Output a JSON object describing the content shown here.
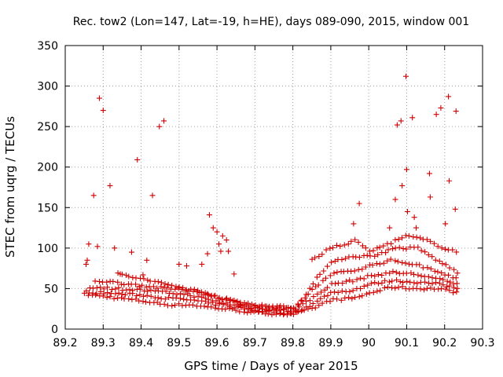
{
  "chart_data": {
    "type": "scatter",
    "title": "Rec. tow2 (Lon=147, Lat=-19, h=HE), days 089-090, 2015, window 001",
    "xlabel": "GPS time / Days of year 2015",
    "ylabel": "STEC from uqrg / TECUs",
    "xlim": [
      89.2,
      90.3
    ],
    "ylim": [
      0,
      350
    ],
    "x_ticks": [
      89.2,
      89.3,
      89.4,
      89.5,
      89.6,
      89.7,
      89.8,
      89.9,
      90.0,
      90.1,
      90.2,
      90.3
    ],
    "x_tick_labels": [
      "89.2",
      "89.3",
      "89.4",
      "89.5",
      "89.6",
      "89.7",
      "89.8",
      "89.9",
      "90",
      "90.1",
      "90.2",
      "90.3"
    ],
    "y_ticks": [
      0,
      50,
      100,
      150,
      200,
      250,
      300,
      350
    ],
    "y_tick_labels": [
      "0",
      "50",
      "100",
      "150",
      "200",
      "250",
      "300",
      "350"
    ],
    "grid": true,
    "marker": "+",
    "marker_color": "#d00000",
    "outliers": [
      [
        89.255,
        80
      ],
      [
        89.258,
        85
      ],
      [
        89.262,
        105
      ],
      [
        89.275,
        165
      ],
      [
        89.285,
        102
      ],
      [
        89.29,
        285
      ],
      [
        89.3,
        270
      ],
      [
        89.318,
        177
      ],
      [
        89.33,
        100
      ],
      [
        89.345,
        68
      ],
      [
        89.375,
        95
      ],
      [
        89.39,
        209
      ],
      [
        89.405,
        67
      ],
      [
        89.415,
        85
      ],
      [
        89.43,
        165
      ],
      [
        89.448,
        250
      ],
      [
        89.46,
        257
      ],
      [
        89.5,
        80
      ],
      [
        89.52,
        78
      ],
      [
        89.56,
        80
      ],
      [
        89.575,
        93
      ],
      [
        89.58,
        141
      ],
      [
        89.59,
        125
      ],
      [
        89.6,
        120
      ],
      [
        89.605,
        105
      ],
      [
        89.61,
        96
      ],
      [
        89.615,
        115
      ],
      [
        89.625,
        110
      ],
      [
        89.63,
        96
      ],
      [
        89.645,
        68
      ],
      [
        89.96,
        130
      ],
      [
        89.975,
        155
      ],
      [
        90.055,
        125
      ],
      [
        90.07,
        160
      ],
      [
        90.075,
        252
      ],
      [
        90.085,
        257
      ],
      [
        90.088,
        177
      ],
      [
        90.098,
        312
      ],
      [
        90.1,
        197
      ],
      [
        90.102,
        145
      ],
      [
        90.115,
        261
      ],
      [
        90.12,
        138
      ],
      [
        90.125,
        125
      ],
      [
        90.16,
        192
      ],
      [
        90.162,
        163
      ],
      [
        90.178,
        265
      ],
      [
        90.19,
        273
      ],
      [
        90.202,
        130
      ],
      [
        90.21,
        287
      ],
      [
        90.212,
        183
      ],
      [
        90.228,
        148
      ],
      [
        90.23,
        269
      ]
    ],
    "arc_series": [
      {
        "name": "arc-a",
        "x": [
          89.252,
          89.4,
          89.47,
          89.53,
          89.58,
          89.64,
          89.7,
          89.76,
          89.8,
          89.85,
          89.9,
          89.96,
          90.0,
          90.06,
          90.12,
          90.18,
          90.238
        ],
        "values": [
          43,
          35,
          30,
          30,
          27,
          24,
          20,
          19,
          18,
          25,
          36,
          38,
          44,
          52,
          50,
          50,
          45
        ]
      },
      {
        "name": "arc-b",
        "x": [
          89.255,
          89.4,
          89.47,
          89.53,
          89.58,
          89.64,
          89.7,
          89.76,
          89.8,
          89.85,
          89.9,
          89.96,
          90.0,
          90.06,
          90.12,
          90.18,
          90.238
        ],
        "values": [
          46,
          42,
          38,
          36,
          32,
          28,
          23,
          21,
          20,
          30,
          45,
          48,
          55,
          60,
          58,
          56,
          50
        ]
      },
      {
        "name": "arc-c",
        "x": [
          89.265,
          89.4,
          89.47,
          89.53,
          89.58,
          89.64,
          89.7,
          89.76,
          89.8,
          89.85,
          89.9,
          89.96,
          90.0,
          90.06,
          90.12,
          90.18,
          90.235
        ],
        "values": [
          52,
          48,
          45,
          42,
          36,
          30,
          26,
          24,
          22,
          38,
          55,
          60,
          65,
          70,
          68,
          62,
          55
        ]
      },
      {
        "name": "arc-d",
        "x": [
          89.28,
          89.38,
          89.47,
          89.53,
          89.58,
          89.64,
          89.7,
          89.76,
          89.8,
          89.85,
          89.9,
          89.96,
          90.0,
          90.06,
          90.12,
          90.18,
          90.235
        ],
        "values": [
          60,
          55,
          50,
          48,
          42,
          34,
          28,
          26,
          24,
          48,
          68,
          72,
          78,
          85,
          80,
          72,
          62
        ]
      },
      {
        "name": "arc-e",
        "x": [
          89.34,
          89.42,
          89.5,
          89.57,
          89.63,
          89.7,
          89.76,
          89.81,
          89.86,
          89.91,
          89.96,
          90.01,
          90.07,
          90.13,
          90.18,
          90.235
        ],
        "values": [
          68,
          60,
          52,
          45,
          36,
          30,
          28,
          26,
          62,
          85,
          90,
          90,
          100,
          100,
          85,
          70
        ]
      },
      {
        "name": "arc-f",
        "x": [
          89.85,
          89.9,
          89.94,
          89.97,
          90.0,
          90.05,
          90.1,
          90.15,
          90.2,
          90.238
        ],
        "values": [
          85,
          100,
          105,
          110,
          95,
          105,
          115,
          110,
          100,
          95
        ]
      }
    ]
  }
}
